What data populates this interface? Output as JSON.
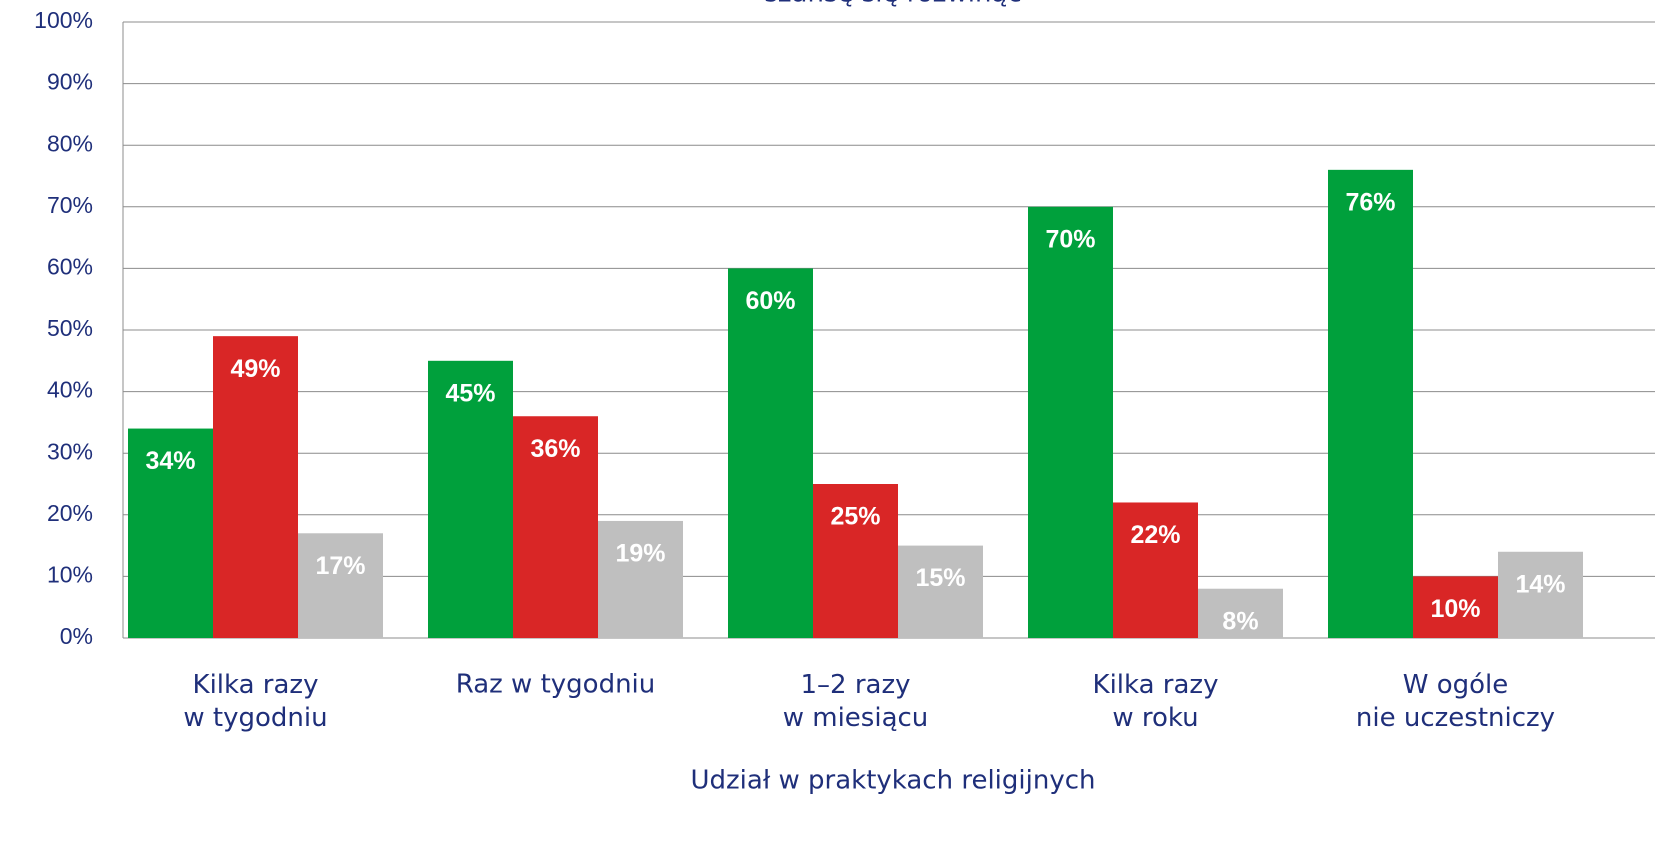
{
  "chart_data": {
    "type": "bar",
    "title": "szansę się rozwinąć",
    "x_label": "Udział w praktykach religijnych",
    "categories": [
      "Kilka razy\nw tygodniu",
      "Raz w tygodniu",
      "1–2 razy\nw miesiącu",
      "Kilka razy\nw roku",
      "W ogóle\nnie uczestniczy"
    ],
    "series": [
      {
        "color": "#00a03c",
        "values": [
          34,
          45,
          60,
          70,
          76
        ],
        "value_labels": [
          "34%",
          "45%",
          "60%",
          "70%",
          "76%"
        ]
      },
      {
        "color": "#d92626",
        "values": [
          49,
          36,
          25,
          22,
          10
        ],
        "value_labels": [
          "49%",
          "36%",
          "25%",
          "22%",
          "10%"
        ]
      },
      {
        "color": "#bfbfbf",
        "values": [
          17,
          19,
          15,
          8,
          14
        ],
        "value_labels": [
          "17%",
          "19%",
          "15%",
          "8%",
          "14%"
        ]
      }
    ],
    "ylim": [
      0,
      100
    ],
    "yticks": [
      {
        "value": 0,
        "label": "0%"
      },
      {
        "value": 10,
        "label": "10%"
      },
      {
        "value": 20,
        "label": "20%"
      },
      {
        "value": 30,
        "label": "30%"
      },
      {
        "value": 40,
        "label": "40%"
      },
      {
        "value": 50,
        "label": "50%"
      },
      {
        "value": 60,
        "label": "60%"
      },
      {
        "value": 70,
        "label": "70%"
      },
      {
        "value": 80,
        "label": "80%"
      },
      {
        "value": 90,
        "label": "90%"
      },
      {
        "value": 100,
        "label": "100%"
      }
    ],
    "grid": true
  }
}
